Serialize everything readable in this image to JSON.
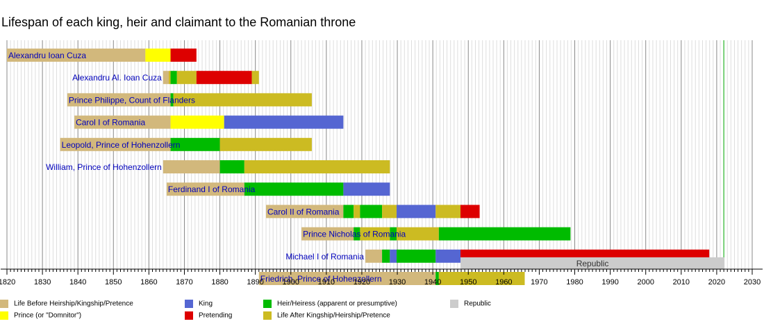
{
  "chart_data": {
    "type": "timeline",
    "title": "Lifespan of each king, heir and claimant to the Romanian throne",
    "xlim": [
      1820,
      2030
    ],
    "x_major_step": 10,
    "x_ticks": [
      "1820",
      "1830",
      "1840",
      "1850",
      "1860",
      "1870",
      "1880",
      "1890",
      "1900",
      "1910",
      "1920",
      "1930",
      "1940",
      "1950",
      "1960",
      "1970",
      "1980",
      "1990",
      "2000",
      "2010",
      "2020",
      "2030"
    ],
    "current_year_line": 2022,
    "colors": {
      "life_before": "#D2B87C",
      "prince": "#FFFF00",
      "king": "#5566D2",
      "pretending": "#DD0000",
      "heir": "#00BB00",
      "life_after": "#CCBB22",
      "republic": "#CCCCCC"
    },
    "rows": [
      {
        "name": "Alexandru Ioan Cuza",
        "label_pos": "inside",
        "segments": [
          {
            "start": 1820,
            "end": 1859,
            "type": "life_before"
          },
          {
            "start": 1859,
            "end": 1866.1,
            "type": "prince"
          },
          {
            "start": 1866.1,
            "end": 1873.4,
            "type": "pretending"
          }
        ]
      },
      {
        "name": "Alexandru Al. Ioan Cuza",
        "label_pos": "left",
        "segments": [
          {
            "start": 1864,
            "end": 1865.6,
            "type": "life_before"
          },
          {
            "start": 1865.6,
            "end": 1866.1,
            "type": "life_after"
          },
          {
            "start": 1866.1,
            "end": 1867.9,
            "type": "heir"
          },
          {
            "start": 1867.9,
            "end": 1873.4,
            "type": "life_after"
          },
          {
            "start": 1873.4,
            "end": 1889,
            "type": "pretending"
          },
          {
            "start": 1889,
            "end": 1891,
            "type": "life_after"
          }
        ]
      },
      {
        "name": "Prince Philippe, Count of Flanders",
        "label_pos": "inside",
        "segments": [
          {
            "start": 1837,
            "end": 1866.1,
            "type": "life_before"
          },
          {
            "start": 1866.1,
            "end": 1866.9,
            "type": "heir"
          },
          {
            "start": 1866.9,
            "end": 1905.9,
            "type": "life_after"
          }
        ]
      },
      {
        "name": "Carol I of Romania",
        "label_pos": "inside",
        "segments": [
          {
            "start": 1839,
            "end": 1866.1,
            "type": "life_before"
          },
          {
            "start": 1866.1,
            "end": 1881.2,
            "type": "prince"
          },
          {
            "start": 1881.2,
            "end": 1914.8,
            "type": "king"
          }
        ]
      },
      {
        "name": "Leopold, Prince of Hohenzollern",
        "label_pos": "inside",
        "segments": [
          {
            "start": 1835,
            "end": 1866.1,
            "type": "life_before"
          },
          {
            "start": 1866.1,
            "end": 1880,
            "type": "heir"
          },
          {
            "start": 1880,
            "end": 1905.9,
            "type": "life_after"
          }
        ]
      },
      {
        "name": "William, Prince of Hohenzollern",
        "label_pos": "left",
        "segments": [
          {
            "start": 1864,
            "end": 1880,
            "type": "life_before"
          },
          {
            "start": 1880,
            "end": 1886.9,
            "type": "heir"
          },
          {
            "start": 1886.9,
            "end": 1927.9,
            "type": "life_after"
          }
        ]
      },
      {
        "name": "Ferdinand I of Romania",
        "label_pos": "inside",
        "segments": [
          {
            "start": 1865,
            "end": 1886.9,
            "type": "life_before"
          },
          {
            "start": 1886.9,
            "end": 1914.8,
            "type": "heir"
          },
          {
            "start": 1914.8,
            "end": 1927.9,
            "type": "king"
          }
        ]
      },
      {
        "name": "Carol II of Romania",
        "label_pos": "inside",
        "segments": [
          {
            "start": 1893,
            "end": 1914.8,
            "type": "life_before"
          },
          {
            "start": 1914.8,
            "end": 1917.7,
            "type": "heir"
          },
          {
            "start": 1917.7,
            "end": 1919.5,
            "type": "life_after"
          },
          {
            "start": 1919.5,
            "end": 1925.7,
            "type": "heir"
          },
          {
            "start": 1925.7,
            "end": 1929.8,
            "type": "life_after"
          },
          {
            "start": 1929.8,
            "end": 1940.8,
            "type": "king"
          },
          {
            "start": 1940.8,
            "end": 1947.8,
            "type": "life_after"
          },
          {
            "start": 1947.8,
            "end": 1953.2,
            "type": "pretending"
          }
        ]
      },
      {
        "name": "Prince Nicholas of Romania",
        "label_pos": "inside",
        "segments": [
          {
            "start": 1903,
            "end": 1917.7,
            "type": "life_before"
          },
          {
            "start": 1917.7,
            "end": 1919.5,
            "type": "heir"
          },
          {
            "start": 1919.5,
            "end": 1927.9,
            "type": "life_after"
          },
          {
            "start": 1927.9,
            "end": 1929.8,
            "type": "heir"
          },
          {
            "start": 1929.8,
            "end": 1941.7,
            "type": "life_after"
          },
          {
            "start": 1941.7,
            "end": 1978.8,
            "type": "heir"
          }
        ]
      },
      {
        "name": "Michael I of Romania",
        "label_pos": "left",
        "segments": [
          {
            "start": 1921,
            "end": 1925.7,
            "type": "life_before"
          },
          {
            "start": 1925.7,
            "end": 1927.9,
            "type": "heir"
          },
          {
            "start": 1927.9,
            "end": 1929.8,
            "type": "king"
          },
          {
            "start": 1929.8,
            "end": 1940.8,
            "type": "heir"
          },
          {
            "start": 1940.8,
            "end": 1947.8,
            "type": "king"
          },
          {
            "start": 1947.8,
            "end": 2017.9,
            "type": "pretending"
          }
        ]
      },
      {
        "name": "Friedrich, Prince of Hohenzollern",
        "label_pos": "inside",
        "segments": [
          {
            "start": 1891,
            "end": 1940.8,
            "type": "life_before"
          },
          {
            "start": 1940.8,
            "end": 1941.7,
            "type": "heir"
          },
          {
            "start": 1941.7,
            "end": 1965.9,
            "type": "life_after"
          }
        ]
      }
    ],
    "republic": {
      "label": "Republic",
      "start": 1947.8,
      "end": 2022.2
    },
    "legend": [
      {
        "label": "Life Before Heirship/Kingship/Pretence",
        "type": "life_before"
      },
      {
        "label": "Prince (or \"Domnitor\")",
        "type": "prince"
      },
      {
        "label": "King",
        "type": "king"
      },
      {
        "label": "Pretending",
        "type": "pretending"
      },
      {
        "label": "Heir/Heiress (apparent or presumptive)",
        "type": "heir"
      },
      {
        "label": "Life After Kingship/Heirship/Pretence",
        "type": "life_after"
      },
      {
        "label": "Republic",
        "type": "republic"
      }
    ]
  }
}
